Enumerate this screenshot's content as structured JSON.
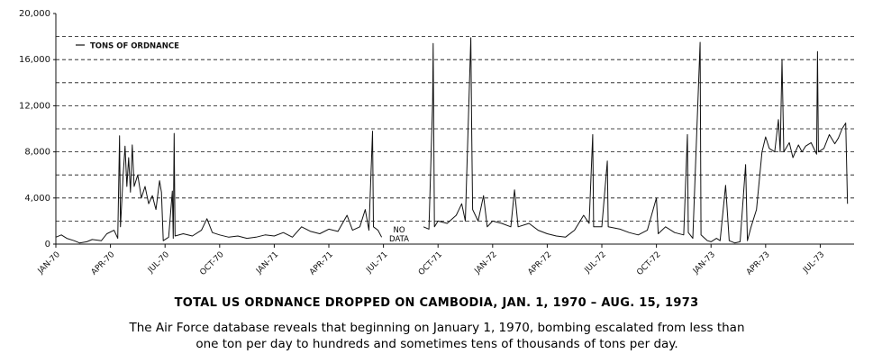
{
  "chart_data": {
    "type": "line",
    "title": "TOTAL US ORDNANCE DROPPED ON CAMBODIA, JAN. 1, 1970 – AUG. 15, 1973",
    "subtitle": "The Air Force database reveals that beginning on January 1, 1970, bombing escalated from less than one ton per day to hundreds and sometimes tens of thousands of tons per day.",
    "annotation": "NO DATA",
    "xlim": [
      0,
      43.86
    ],
    "xticks": [
      {
        "value": 0,
        "label": "JAN-70"
      },
      {
        "value": 3,
        "label": "APR-70"
      },
      {
        "value": 6,
        "label": "JUL-70"
      },
      {
        "value": 9,
        "label": "OCT-70"
      },
      {
        "value": 12,
        "label": "JAN-71"
      },
      {
        "value": 15,
        "label": "APR-71"
      },
      {
        "value": 18,
        "label": "JUL-71"
      },
      {
        "value": 21,
        "label": "OCT-71"
      },
      {
        "value": 24,
        "label": "JAN-72"
      },
      {
        "value": 27,
        "label": "APR-72"
      },
      {
        "value": 30,
        "label": "JUL-72"
      },
      {
        "value": 33,
        "label": "OCT-72"
      },
      {
        "value": 36,
        "label": "JAN-73"
      },
      {
        "value": 39,
        "label": "APR-73"
      },
      {
        "value": 42,
        "label": "JUL-73"
      }
    ],
    "ylim": [
      0,
      20000
    ],
    "yticks": [
      0,
      {
        "value": 4000,
        "label": "4,000"
      },
      {
        "value": 8000,
        "label": "8,000"
      },
      {
        "value": 12000,
        "label": "12,000"
      },
      {
        "value": 16000,
        "label": "16,000"
      },
      {
        "value": 20000,
        "label": "20,000"
      }
    ],
    "ygrid": [
      2000,
      4000,
      6000,
      8000,
      10000,
      12000,
      14000,
      16000,
      18000
    ],
    "legend": "top-left",
    "series": [
      {
        "name": "TONS OF ORDNANCE",
        "color": "#111111",
        "x": [
          0,
          0.3,
          0.6,
          1,
          1.3,
          1.7,
          2,
          2.5,
          2.8,
          3.2,
          3.4,
          3.5,
          3.55,
          3.7,
          3.8,
          3.9,
          4,
          4.1,
          4.2,
          4.3,
          4.5,
          4.7,
          4.9,
          5.1,
          5.3,
          5.5,
          5.7,
          5.8,
          5.9,
          6.2,
          6.4,
          6.45,
          6.5,
          6.55,
          7,
          7.5,
          8,
          8.3,
          8.6,
          9,
          9.5,
          10,
          10.5,
          11,
          11.5,
          12,
          12.5,
          13,
          13.5,
          14,
          14.5,
          15,
          15.5,
          16,
          16.3,
          16.7,
          17,
          17.2,
          17.4,
          17.45,
          17.7,
          17.9,
          18.8,
          20.2,
          20.5,
          20.7,
          20.73,
          20.8,
          21,
          21.5,
          22,
          22.3,
          22.5,
          22.8,
          22.85,
          22.9,
          23.2,
          23.5,
          23.7,
          24,
          24.5,
          25,
          25.2,
          25.4,
          26,
          26.5,
          27,
          27.5,
          28,
          28.5,
          29,
          29.3,
          29.5,
          29.55,
          30,
          30.3,
          30.35,
          31,
          31.5,
          32,
          32.5,
          33,
          33.1,
          33.5,
          34,
          34.5,
          34.7,
          34.75,
          35,
          35.4,
          35.45,
          35.8,
          36,
          36.3,
          36.5,
          36.8,
          37,
          37.3,
          37.6,
          37.9,
          38,
          38.2,
          38.5,
          38.8,
          39,
          39.2,
          39.5,
          39.7,
          39.8,
          39.9,
          40,
          40.3,
          40.5,
          40.8,
          41,
          41.2,
          41.5,
          41.8,
          41.85,
          41.9,
          42.2,
          42.5,
          42.8,
          43,
          43.2,
          43.4,
          43.5
        ],
        "values": [
          600,
          800,
          500,
          300,
          100,
          200,
          400,
          300,
          900,
          1200,
          500,
          9400,
          1500,
          6000,
          8500,
          5000,
          7500,
          4500,
          8600,
          5000,
          6000,
          4000,
          5000,
          3500,
          4200,
          3000,
          5500,
          4500,
          300,
          600,
          4600,
          500,
          9600,
          700,
          900,
          700,
          1200,
          2200,
          1000,
          800,
          600,
          700,
          500,
          600,
          800,
          700,
          1000,
          600,
          1500,
          1100,
          900,
          1300,
          1100,
          2500,
          1200,
          1500,
          3000,
          1200,
          9800,
          1500,
          1200,
          600,
          null,
          1500,
          1300,
          12300,
          17400,
          1500,
          2000,
          1800,
          2500,
          3500,
          2000,
          17900,
          9600,
          3000,
          2000,
          4200,
          1500,
          2000,
          1800,
          1500,
          4700,
          1500,
          1800,
          1200,
          900,
          700,
          600,
          1200,
          2500,
          1800,
          9500,
          1500,
          1500,
          7200,
          1500,
          1300,
          1000,
          800,
          1200,
          4000,
          900,
          1500,
          1000,
          800,
          9500,
          1000,
          500,
          17500,
          800,
          300,
          200,
          500,
          300,
          5100,
          300,
          100,
          200,
          6900,
          300,
          1500,
          3000,
          8000,
          9300,
          8300,
          8000,
          10800,
          8000,
          16000,
          8000,
          8800,
          7500,
          8600,
          8000,
          8500,
          8800,
          7800,
          16700,
          8000,
          8300,
          9500,
          8700,
          9200,
          10000,
          10500,
          3500
        ]
      }
    ]
  }
}
